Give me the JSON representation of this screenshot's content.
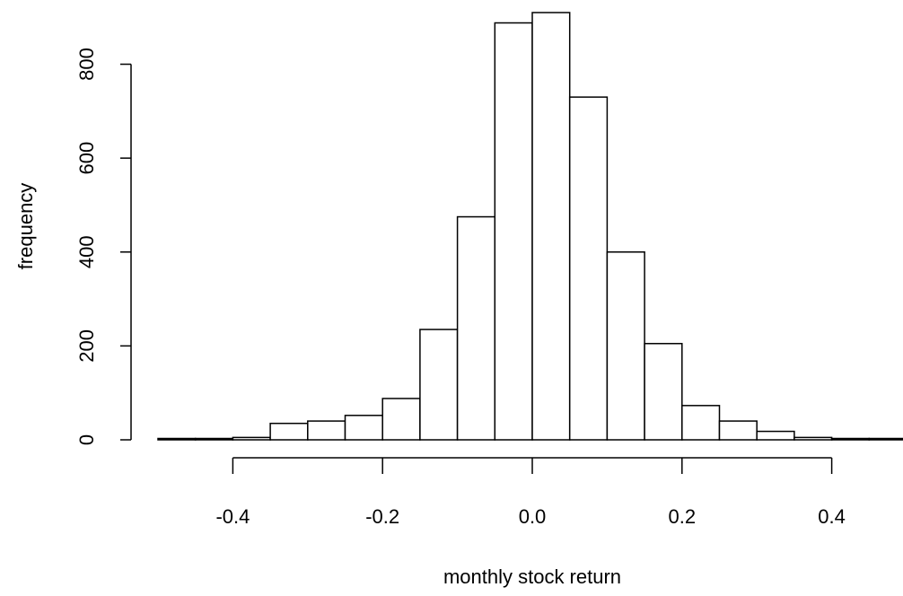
{
  "chart_data": {
    "type": "bar",
    "title": "",
    "xlabel": "monthly stock return",
    "ylabel": "frequency",
    "bin_edges": [
      -0.5,
      -0.45,
      -0.4,
      -0.35,
      -0.3,
      -0.25,
      -0.2,
      -0.15,
      -0.1,
      -0.05,
      0.0,
      0.05,
      0.1,
      0.15,
      0.2,
      0.25,
      0.3,
      0.35,
      0.4,
      0.45,
      0.5
    ],
    "values": [
      1,
      1,
      5,
      35,
      40,
      52,
      88,
      235,
      475,
      888,
      910,
      730,
      400,
      205,
      73,
      40,
      18,
      5,
      2,
      1
    ],
    "xlim": [
      -0.5,
      0.5
    ],
    "ylim": [
      0,
      910
    ],
    "xticks": [
      -0.4,
      -0.2,
      0.0,
      0.2,
      0.4
    ],
    "xtick_labels": [
      "-0.4",
      "-0.2",
      "0.0",
      "0.2",
      "0.4"
    ],
    "yticks": [
      0,
      200,
      400,
      600,
      800
    ],
    "ytick_labels": [
      "0",
      "200",
      "400",
      "600",
      "800"
    ],
    "grid": false,
    "bar_fill": "#ffffff",
    "bar_stroke": "#000000"
  }
}
